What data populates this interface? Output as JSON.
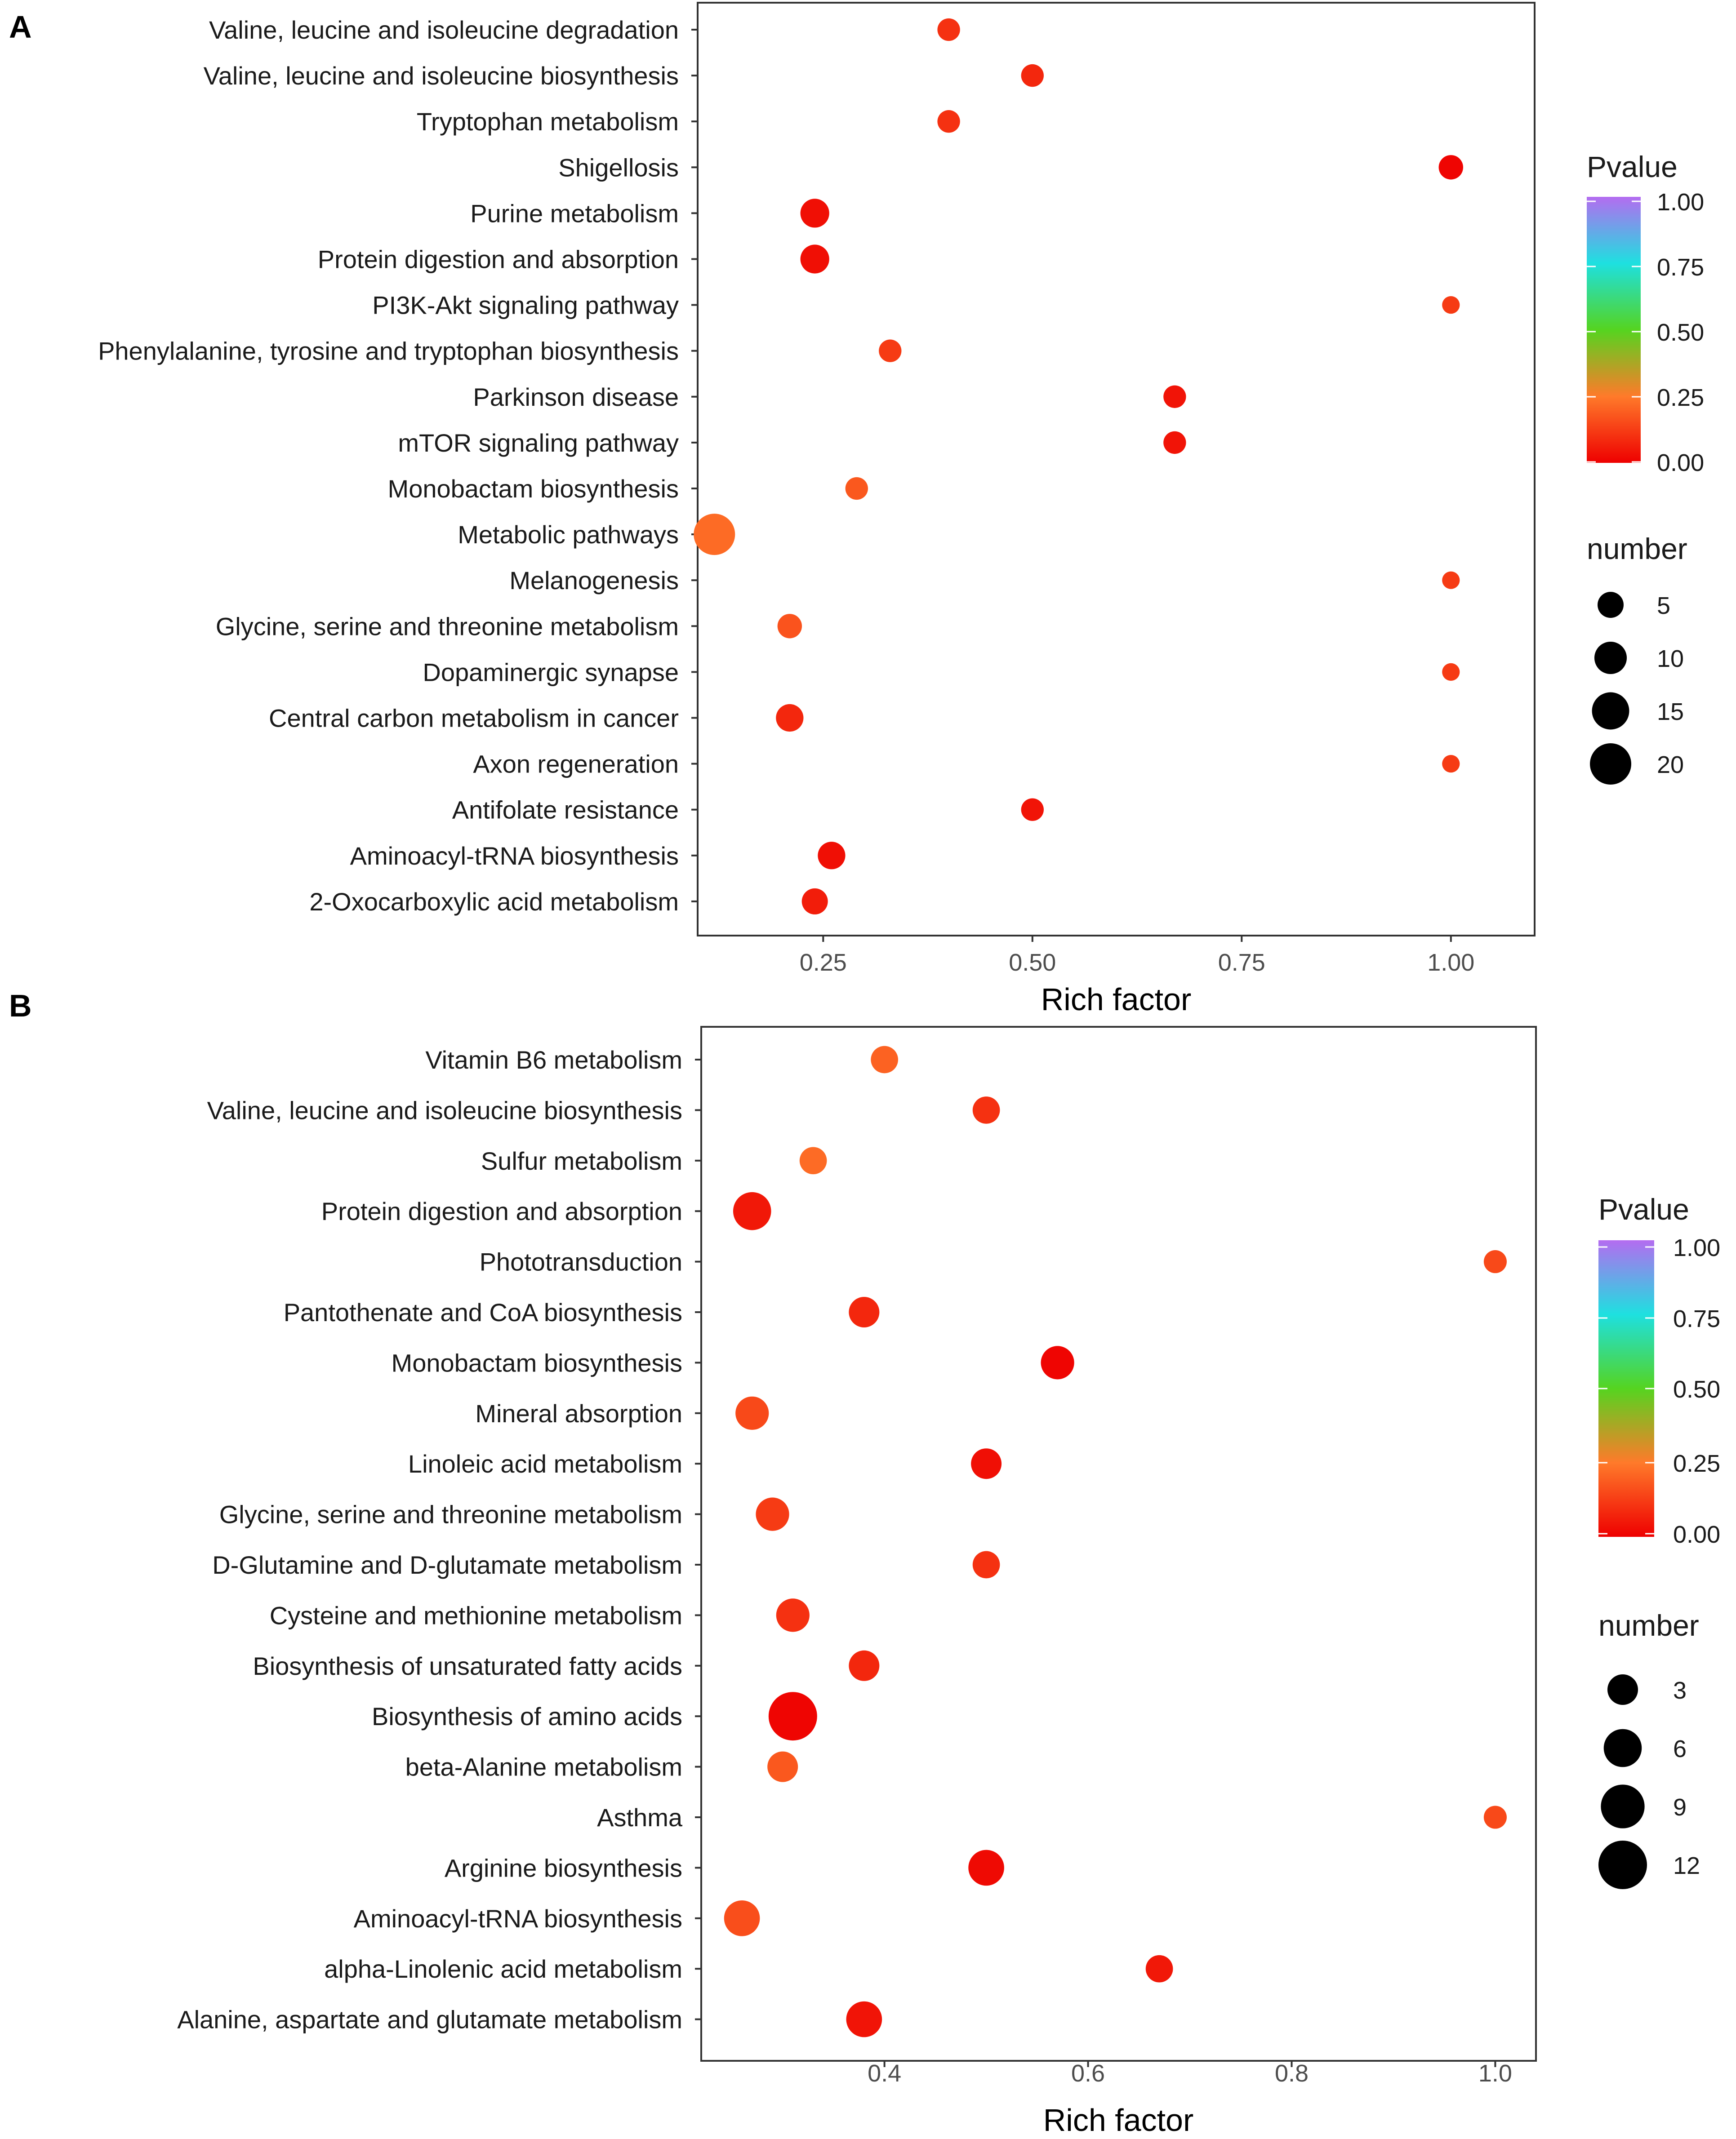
{
  "chart_data": [
    {
      "type": "scatter",
      "panel_label": "A",
      "xlabel": "Rich factor",
      "ylabel": "",
      "xlim": [
        0.1,
        1.1
      ],
      "xticks": [
        0.25,
        0.5,
        0.75,
        1.0
      ],
      "xtick_labels": [
        "0.25",
        "0.50",
        "0.75",
        "1.00"
      ],
      "categories": [
        "Valine, leucine and isoleucine degradation",
        "Valine, leucine and isoleucine biosynthesis",
        "Tryptophan metabolism",
        "Shigellosis",
        "Purine metabolism",
        "Protein digestion and absorption",
        "PI3K-Akt signaling pathway",
        "Phenylalanine, tyrosine and tryptophan biosynthesis",
        "Parkinson disease",
        "mTOR signaling pathway",
        "Monobactam biosynthesis",
        "Metabolic pathways",
        "Melanogenesis",
        "Glycine, serine and threonine metabolism",
        "Dopaminergic synapse",
        "Central carbon metabolism in cancer",
        "Axon regeneration",
        "Antifolate resistance",
        "Aminoacyl-tRNA biosynthesis",
        "2-Oxocarboxylic acid metabolism"
      ],
      "rich_factor": [
        0.4,
        0.5,
        0.4,
        1.0,
        0.24,
        0.24,
        1.0,
        0.33,
        0.67,
        0.67,
        0.29,
        0.12,
        1.0,
        0.21,
        1.0,
        0.21,
        1.0,
        0.5,
        0.26,
        0.24
      ],
      "number": [
        3,
        3,
        3,
        4,
        7,
        7,
        1,
        3,
        3,
        3,
        3,
        20,
        1,
        4,
        1,
        6,
        1,
        3,
        6,
        5
      ],
      "pvalue": [
        0.1,
        0.08,
        0.1,
        0.01,
        0.03,
        0.03,
        0.12,
        0.12,
        0.04,
        0.04,
        0.18,
        0.22,
        0.12,
        0.17,
        0.12,
        0.08,
        0.12,
        0.04,
        0.03,
        0.06
      ],
      "legend": {
        "color_title": "Pvalue",
        "color_ticks": [
          "1.00",
          "0.75",
          "0.50",
          "0.25",
          "0.00"
        ],
        "size_title": "number",
        "size_ticks": [
          "5",
          "10",
          "15",
          "20"
        ],
        "size_values": [
          5,
          10,
          15,
          20
        ],
        "placement": "right"
      }
    },
    {
      "type": "scatter",
      "panel_label": "B",
      "xlabel": "Rich factor",
      "ylabel": "",
      "xlim": [
        0.22,
        1.04
      ],
      "xticks": [
        0.4,
        0.6,
        0.8,
        1.0
      ],
      "xtick_labels": [
        "0.4",
        "0.6",
        "0.8",
        "1.0"
      ],
      "categories": [
        "Vitamin B6 metabolism",
        "Valine, leucine and isoleucine biosynthesis",
        "Sulfur metabolism",
        "Protein digestion and absorption",
        "Phototransduction",
        "Pantothenate and CoA biosynthesis",
        "Monobactam biosynthesis",
        "Mineral absorption",
        "Linoleic acid metabolism",
        "Glycine, serine and threonine metabolism",
        "D-Glutamine and D-glutamate metabolism",
        "Cysteine and methionine metabolism",
        "Biosynthesis of unsaturated fatty acids",
        "Biosynthesis of amino acids",
        "beta-Alanine metabolism",
        "Asthma",
        "Arginine biosynthesis",
        "Aminoacyl-tRNA biosynthesis",
        "alpha-Linolenic acid metabolism",
        "Alanine, aspartate and glutamate metabolism"
      ],
      "rich_factor": [
        0.4,
        0.5,
        0.33,
        0.27,
        1.0,
        0.38,
        0.57,
        0.27,
        0.5,
        0.29,
        0.5,
        0.31,
        0.38,
        0.31,
        0.3,
        1.0,
        0.5,
        0.26,
        0.67,
        0.38
      ],
      "number": [
        2,
        2,
        2,
        6,
        1,
        3,
        4,
        4,
        3,
        4,
        2,
        4,
        3,
        12,
        3,
        1,
        5,
        5,
        2,
        5
      ],
      "pvalue": [
        0.2,
        0.1,
        0.22,
        0.05,
        0.15,
        0.08,
        0.01,
        0.15,
        0.03,
        0.12,
        0.1,
        0.1,
        0.08,
        0.01,
        0.18,
        0.15,
        0.02,
        0.16,
        0.05,
        0.04
      ],
      "legend": {
        "color_title": "Pvalue",
        "color_ticks": [
          "1.00",
          "0.75",
          "0.50",
          "0.25",
          "0.00"
        ],
        "size_title": "number",
        "size_ticks": [
          "3",
          "6",
          "9",
          "12"
        ],
        "size_values": [
          3,
          6,
          9,
          12
        ],
        "placement": "right"
      }
    }
  ]
}
